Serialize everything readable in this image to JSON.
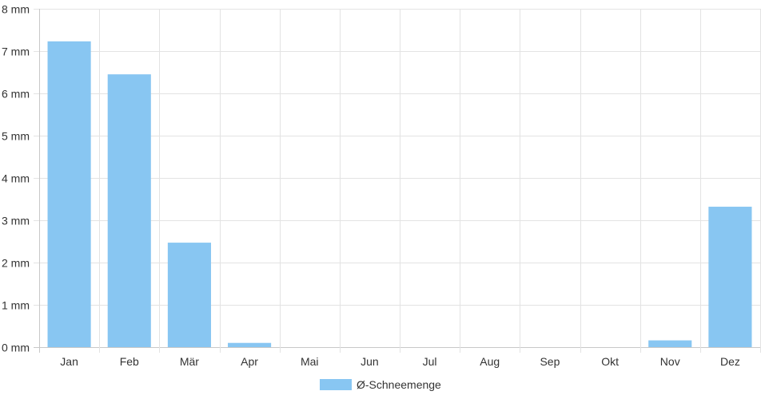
{
  "chart_data": {
    "type": "bar",
    "categories": [
      "Jan",
      "Feb",
      "Mär",
      "Apr",
      "Mai",
      "Jun",
      "Jul",
      "Aug",
      "Sep",
      "Okt",
      "Nov",
      "Dez"
    ],
    "series": [
      {
        "name": "Ø-Schneemenge",
        "values": [
          7.23,
          6.45,
          2.47,
          0.1,
          0,
          0,
          0,
          0,
          0,
          0,
          0.16,
          3.32
        ],
        "color": "#88c6f2"
      }
    ],
    "y_ticks": [
      "0 mm",
      "1 mm",
      "2 mm",
      "3 mm",
      "4 mm",
      "5 mm",
      "6 mm",
      "7 mm",
      "8 mm"
    ],
    "ylim": [
      0,
      8
    ],
    "grid": true,
    "legend_position": "bottom"
  }
}
